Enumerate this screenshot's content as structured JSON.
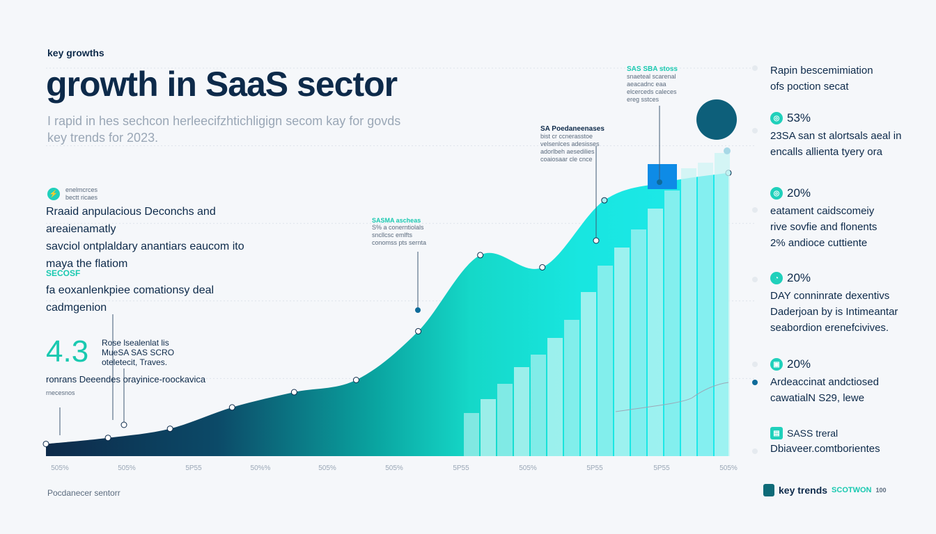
{
  "header": {
    "eyebrow": "key growths",
    "title": "growth in SaaS sector",
    "subtitle_line1": "I rapid in hes sechcon herleecifzhtichligign secom kay for govds",
    "subtitle_line2": "key trends for 2023."
  },
  "left_panel": {
    "block1_small_1": "enelmcrces",
    "block1_small_2": "bectt ricaes",
    "block1_lines": [
      "Rraaid anpulacious Deconchs and areaienamatly",
      "savciol ontplaldary anantiars eaucom ito",
      "maya the flatiom"
    ],
    "block2_label": "SECOSF",
    "block2_lines": [
      "fa eoxanlenkpiee comationsy deal",
      "cadmgenion"
    ],
    "big_number": "4.3",
    "big_side_lines": [
      "Rose lsealenlat lis",
      "MueSA SAS SCRO",
      "oteletecit, Traves."
    ],
    "big_caption": "ronrans Deeendes orayinice-roockavica",
    "big_caption_small": "rnecesnos"
  },
  "annotations": {
    "ann1_title": "SASMA ascheas",
    "ann1_lines": [
      "S% a conerntiolals",
      "sncllcsc emlfts",
      "conomss pts sernta"
    ],
    "ann2_title": "SA Poedaneenases",
    "ann2_lines": [
      "bist cr ccnerasstoe",
      "velsenlces adesisses",
      "adorlbeh aesedilies",
      "coaiosaar cle cnce"
    ],
    "ann3_title": "SAS SBA stoss",
    "ann3_lines": [
      "snaeteal scarenal",
      "aeacadnc eaa",
      "elcerceds caleces",
      "ereg sstces"
    ]
  },
  "right_panel": {
    "item0": {
      "lines": [
        "Rapin bescemimiation",
        "ofs poction secat"
      ]
    },
    "item1": {
      "pct": "53%",
      "lines": [
        "23SA san st alortsals aeal in",
        "encalls allienta tyery ora"
      ]
    },
    "item2": {
      "pct": "20%",
      "lines": [
        "eatament caidscomeiy",
        "rive sovfie and flonents",
        "2% andioce cuttiente"
      ]
    },
    "item3": {
      "pct": "20%",
      "lines": [
        "DAY conninrate dexentivs",
        "Daderjoan by is Intimeantar",
        "seabordion erenefcivives."
      ]
    },
    "item4": {
      "pct": "20%",
      "lines": [
        "Ardeaccinat andctiosed",
        "cawatialN S29, lewe"
      ]
    },
    "item5": {
      "title": "SASS treral",
      "lines": [
        "Dbiaveer.comtborientes"
      ]
    }
  },
  "footer": {
    "left": "Pocdanecer sentorr",
    "right": "key trends",
    "right_tag": "SCOTWON",
    "right_tiny": "100"
  },
  "colors": {
    "navy": "#0d2a4a",
    "teal": "#19c9b0",
    "cyan": "#18e6e0",
    "blue": "#0e8be6",
    "pale": "#c8f4f3",
    "dark_dot": "#0d5f7a"
  },
  "chart_data": {
    "type": "area",
    "x_ticks": [
      "505%",
      "505%",
      "5P55",
      "50%%",
      "505%",
      "505%",
      "5P55",
      "505%",
      "5P55",
      "5P55",
      "505%"
    ],
    "series": [
      {
        "values": [
          4,
          6,
          9,
          16,
          21,
          25,
          41,
          66,
          62,
          84,
          90,
          93
        ]
      }
    ],
    "ylim": [
      0,
      100
    ],
    "grid": true
  }
}
